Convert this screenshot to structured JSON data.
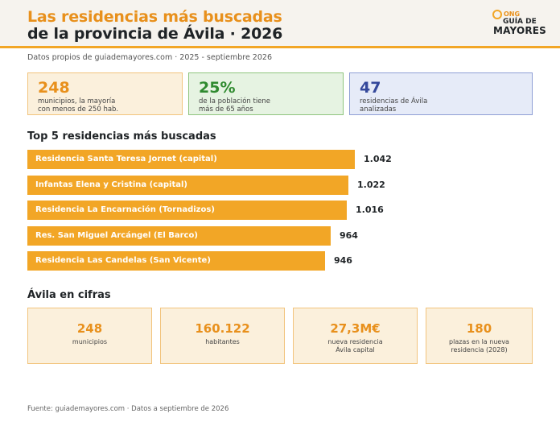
{
  "header": {
    "title_line1": "Las residencias más buscadas",
    "title_line2": "de la provincia de Ávila · 2026",
    "logo": {
      "top": "ONG",
      "middle": "GUÍA DE",
      "bottom": "MAYORES"
    }
  },
  "subtitle": "Datos propios de guiademayores.com · 2025 - septiembre 2026",
  "kpis": [
    {
      "value": "248",
      "text": "municipios, la mayoría\ncon menos de 250 hab."
    },
    {
      "value": "25%",
      "text": "de la población tiene\nmás de 65 años"
    },
    {
      "value": "47",
      "text": "residencias de Ávila\nanalizadas"
    }
  ],
  "top5_title": "Top 5 residencias más buscadas",
  "chart_data": {
    "type": "bar",
    "orientation": "horizontal",
    "title": "Top 5 residencias más buscadas",
    "categories": [
      "Residencia Santa Teresa Jornet (capital)",
      "Infantas Elena y Cristina (capital)",
      "Residencia La Encarnación (Tornadizos)",
      "Res. San Miguel Arcángel (El Barco)",
      "Residencia Las Candelas (San Vicente)"
    ],
    "values": [
      1042,
      1022,
      1016,
      964,
      946
    ],
    "value_labels": [
      "1.042",
      "1.022",
      "1.016",
      "964",
      "946"
    ],
    "xlim": [
      0,
      1042
    ],
    "grid": false,
    "bar_color": "#f2a626"
  },
  "cifras_title": "Ávila en cifras",
  "cifras": [
    {
      "value": "248",
      "text": "municipios"
    },
    {
      "value": "160.122",
      "text": "habitantes"
    },
    {
      "value": "27,3M€",
      "text": "nueva residencia\nÁvila capital"
    },
    {
      "value": "180",
      "text": "plazas en la nueva\nresidencia (2028)"
    }
  ],
  "footer": "Fuente: guiademayores.com · Datos a septiembre de 2026",
  "colors": {
    "accent": "#e8901c",
    "bar": "#f2a626",
    "green": "#2f8a2f",
    "blue": "#34489b"
  }
}
